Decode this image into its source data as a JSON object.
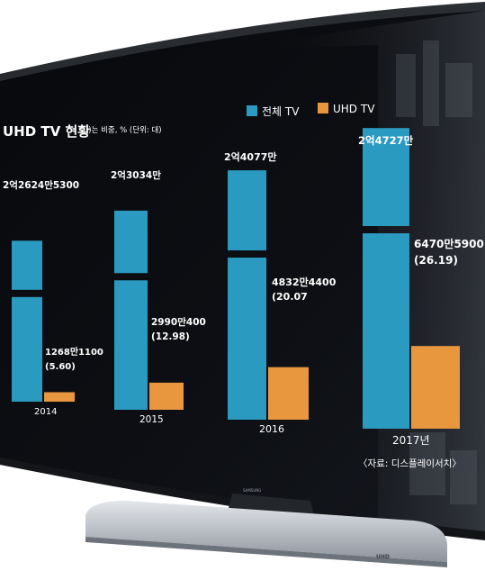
{
  "chart_data": {
    "type": "bar",
    "title": "UHD TV 현황",
    "note": "*(    )는 비중, % (단위: 대)",
    "source": "〈자료: 디스플레이서치〉",
    "categories": [
      "2014",
      "2015",
      "2016",
      "2017년"
    ],
    "series": [
      {
        "name": "전체 TV",
        "color": "#2A9AC0",
        "values": [
          226245300,
          230340000,
          240770000,
          247270000
        ],
        "labels": [
          "2억2624만5300",
          "2억3034만",
          "2억4077만",
          "2억4727만"
        ]
      },
      {
        "name": "UHD TV",
        "color": "#E8973F",
        "values": [
          12681100,
          29900400,
          48324400,
          64705900
        ],
        "share_pct": [
          5.6,
          12.98,
          20.07,
          26.19
        ],
        "labels": [
          "1268만1100",
          "2990만400",
          "4832만4400",
          "6470만5900"
        ],
        "share_labels": [
          "(5.60)",
          "(12.98)",
          "(20.07",
          "(26.19)"
        ]
      }
    ],
    "axis_break": true,
    "legend_position": "top-right",
    "grid": false
  }
}
